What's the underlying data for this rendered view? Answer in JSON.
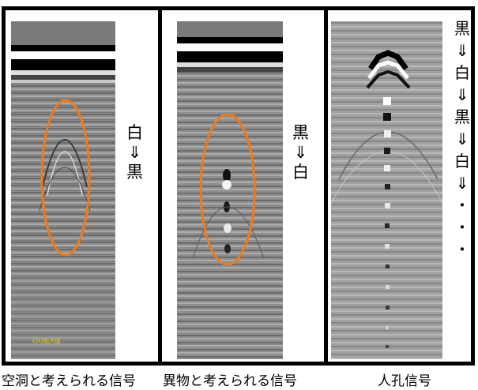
{
  "panels": [
    {
      "caption": "空洞と考えられる信号",
      "label_top": "白",
      "label_arrow": "⇓",
      "label_bottom": "黒",
      "tag": "CH3拡大図"
    },
    {
      "caption": "異物と考えられる信号",
      "label_top": "黒",
      "label_arrow": "⇓",
      "label_bottom": "白"
    },
    {
      "caption": "人孔信号",
      "sequence": [
        "黒",
        "⇓",
        "白",
        "⇓",
        "黒",
        "⇓",
        "白",
        "⇓",
        "・",
        "・",
        "・"
      ]
    }
  ],
  "colors": {
    "highlight_ellipse": "#f07a1a",
    "border": "#000000",
    "tag": "#e8d400"
  }
}
